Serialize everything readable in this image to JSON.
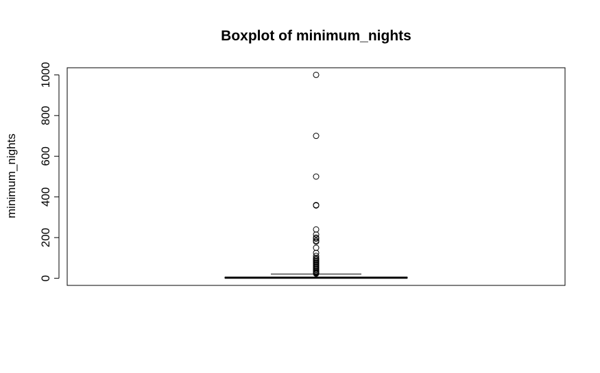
{
  "chart_data": {
    "type": "boxplot",
    "title": "Boxplot of minimum_nights",
    "xlabel": "",
    "ylabel": "minimum_nights",
    "ylim": [
      -35,
      1035
    ],
    "yticks": [
      0,
      200,
      400,
      600,
      800,
      1000
    ],
    "ytick_labels": [
      "0",
      "200",
      "400",
      "600",
      "800",
      "1000"
    ],
    "grid": false,
    "box": {
      "min": 1,
      "q1": 1,
      "median": 3,
      "q3": 5,
      "whisker_low": 1,
      "whisker_high": 21
    },
    "outliers": [
      1000,
      700,
      500,
      360,
      358,
      240,
      215,
      200,
      195,
      185,
      180,
      150,
      125,
      110,
      100,
      95,
      90,
      85,
      80,
      75,
      70,
      65,
      60,
      55,
      50,
      45,
      40,
      35,
      30,
      28,
      25,
      23
    ],
    "colors": {
      "stroke": "#000000",
      "background": "#ffffff"
    }
  }
}
